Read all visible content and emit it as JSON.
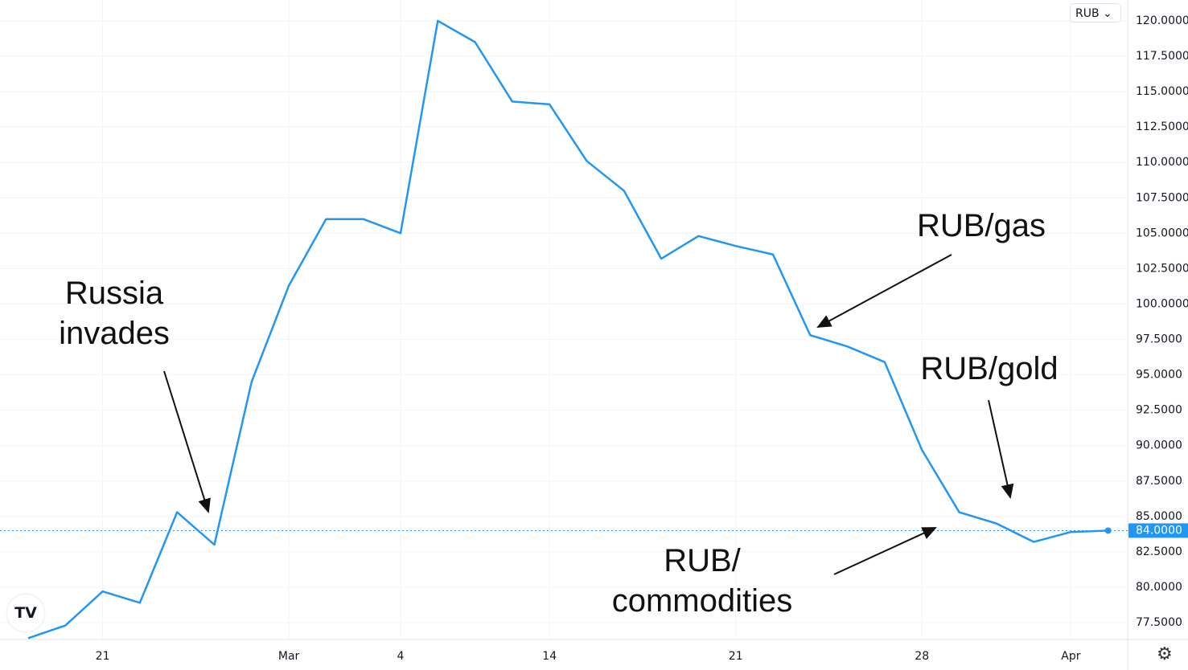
{
  "chart_data": {
    "type": "line",
    "currency_button": "RUB",
    "current_value_label": "84.0000",
    "ylim": [
      76.0,
      121.0
    ],
    "yticks": [
      "120.0000",
      "117.5000",
      "115.0000",
      "112.5000",
      "110.0000",
      "107.5000",
      "105.0000",
      "102.5000",
      "100.0000",
      "97.5000",
      "95.0000",
      "92.5000",
      "90.0000",
      "87.5000",
      "85.0000",
      "82.5000",
      "80.0000",
      "77.5000"
    ],
    "xticks": [
      {
        "label": "21",
        "point": 2
      },
      {
        "label": "Mar",
        "point": 7
      },
      {
        "label": "4",
        "point": 10
      },
      {
        "label": "14",
        "point": 14
      },
      {
        "label": "21",
        "point": 19
      },
      {
        "label": "28",
        "point": 24
      },
      {
        "label": "Apr",
        "point": 28
      }
    ],
    "series": [
      {
        "color": "#2196f3",
        "values": [
          76.4,
          77.3,
          79.7,
          78.9,
          85.3,
          83.0,
          94.5,
          101.3,
          106.0,
          106.0,
          105.0,
          120.0,
          118.5,
          114.3,
          114.1,
          110.1,
          108.0,
          103.2,
          104.8,
          104.1,
          103.5,
          97.8,
          97.0,
          95.9,
          89.7,
          85.3,
          84.5,
          83.2,
          83.9,
          84.0
        ]
      }
    ],
    "current_value": 84.0,
    "grid": true,
    "annotations": [
      {
        "text_lines": [
          "Russia",
          "invades"
        ],
        "points_to": 5
      },
      {
        "text_lines": [
          "RUB/gas"
        ],
        "points_to": 21
      },
      {
        "text_lines": [
          "RUB/gold"
        ],
        "points_to": 26
      },
      {
        "text_lines": [
          "RUB/",
          "commodities"
        ],
        "points_to": 25
      }
    ],
    "logo": "TV"
  }
}
